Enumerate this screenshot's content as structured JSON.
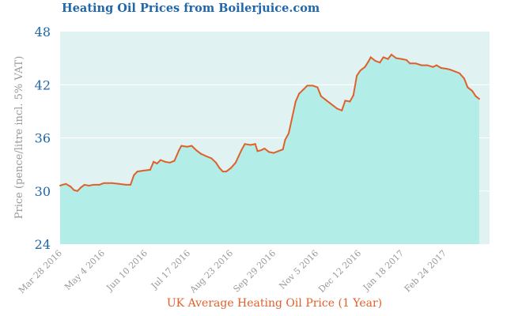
{
  "chart_data": {
    "type": "area",
    "title": "Heating Oil Prices from Boilerjuice.com",
    "ylabel": "Price (pence/litre incl. 5% VAT)",
    "xlabel": "UK Average Heating Oil Price (1 Year)",
    "ylim": [
      24,
      48
    ],
    "yticks": [
      "24",
      "30",
      "36",
      "42",
      "48"
    ],
    "xlim": [
      "2016-03-28",
      "2017-04-04"
    ],
    "xticks": [
      {
        "date": "2016-03-28",
        "label": "Mar 28 2016"
      },
      {
        "date": "2016-05-04",
        "label": "May 4 2016"
      },
      {
        "date": "2016-06-10",
        "label": "Jun 10 2016"
      },
      {
        "date": "2016-07-17",
        "label": "Jul 17 2016"
      },
      {
        "date": "2016-08-23",
        "label": "Aug 23 2016"
      },
      {
        "date": "2016-09-29",
        "label": "Sep 29 2016"
      },
      {
        "date": "2016-11-05",
        "label": "Nov 5 2016"
      },
      {
        "date": "2016-12-12",
        "label": "Dec 12 2016"
      },
      {
        "date": "2017-01-18",
        "label": "Jan 18 2017"
      },
      {
        "date": "2017-02-24",
        "label": "Feb 24 2017"
      }
    ],
    "grid": {
      "horizontal": true,
      "vertical": false
    },
    "series": [
      {
        "points": [
          [
            "2016-03-28",
            30.6
          ],
          [
            "2016-03-30",
            30.7
          ],
          [
            "2016-04-02",
            30.8
          ],
          [
            "2016-04-06",
            30.5
          ],
          [
            "2016-04-09",
            30.1
          ],
          [
            "2016-04-12",
            30.0
          ],
          [
            "2016-04-15",
            30.4
          ],
          [
            "2016-04-18",
            30.7
          ],
          [
            "2016-04-22",
            30.6
          ],
          [
            "2016-04-26",
            30.7
          ],
          [
            "2016-05-01",
            30.7
          ],
          [
            "2016-05-05",
            30.9
          ],
          [
            "2016-05-12",
            30.9
          ],
          [
            "2016-05-18",
            30.8
          ],
          [
            "2016-05-24",
            30.7
          ],
          [
            "2016-05-28",
            30.7
          ],
          [
            "2016-05-31",
            31.8
          ],
          [
            "2016-06-03",
            32.2
          ],
          [
            "2016-06-08",
            32.3
          ],
          [
            "2016-06-14",
            32.4
          ],
          [
            "2016-06-17",
            33.3
          ],
          [
            "2016-06-20",
            33.1
          ],
          [
            "2016-06-23",
            33.5
          ],
          [
            "2016-06-27",
            33.3
          ],
          [
            "2016-07-01",
            33.2
          ],
          [
            "2016-07-05",
            33.4
          ],
          [
            "2016-07-09",
            34.6
          ],
          [
            "2016-07-11",
            35.1
          ],
          [
            "2016-07-16",
            35.0
          ],
          [
            "2016-07-20",
            35.1
          ],
          [
            "2016-07-24",
            34.6
          ],
          [
            "2016-07-28",
            34.2
          ],
          [
            "2016-08-02",
            33.9
          ],
          [
            "2016-08-06",
            33.7
          ],
          [
            "2016-08-10",
            33.2
          ],
          [
            "2016-08-13",
            32.6
          ],
          [
            "2016-08-16",
            32.2
          ],
          [
            "2016-08-19",
            32.2
          ],
          [
            "2016-08-23",
            32.6
          ],
          [
            "2016-08-27",
            33.2
          ],
          [
            "2016-09-01",
            34.6
          ],
          [
            "2016-09-04",
            35.3
          ],
          [
            "2016-09-09",
            35.2
          ],
          [
            "2016-09-13",
            35.3
          ],
          [
            "2016-09-15",
            34.5
          ],
          [
            "2016-09-18",
            34.6
          ],
          [
            "2016-09-21",
            34.8
          ],
          [
            "2016-09-25",
            34.4
          ],
          [
            "2016-09-29",
            34.3
          ],
          [
            "2016-10-03",
            34.5
          ],
          [
            "2016-10-07",
            34.7
          ],
          [
            "2016-10-09",
            35.8
          ],
          [
            "2016-10-12",
            36.5
          ],
          [
            "2016-10-15",
            38.3
          ],
          [
            "2016-10-18",
            40.1
          ],
          [
            "2016-10-21",
            41.0
          ],
          [
            "2016-10-25",
            41.5
          ],
          [
            "2016-10-28",
            41.9
          ],
          [
            "2016-11-02",
            41.9
          ],
          [
            "2016-11-06",
            41.7
          ],
          [
            "2016-11-09",
            40.7
          ],
          [
            "2016-11-13",
            40.3
          ],
          [
            "2016-11-18",
            39.8
          ],
          [
            "2016-11-23",
            39.3
          ],
          [
            "2016-11-27",
            39.1
          ],
          [
            "2016-11-30",
            40.2
          ],
          [
            "2016-12-04",
            40.1
          ],
          [
            "2016-12-07",
            40.8
          ],
          [
            "2016-12-10",
            43.0
          ],
          [
            "2016-12-13",
            43.6
          ],
          [
            "2016-12-17",
            44.0
          ],
          [
            "2016-12-20",
            44.6
          ],
          [
            "2016-12-22",
            45.1
          ],
          [
            "2016-12-26",
            44.7
          ],
          [
            "2016-12-30",
            44.5
          ],
          [
            "2017-01-02",
            45.1
          ],
          [
            "2017-01-06",
            44.9
          ],
          [
            "2017-01-09",
            45.4
          ],
          [
            "2017-01-13",
            45.0
          ],
          [
            "2017-01-18",
            44.9
          ],
          [
            "2017-01-22",
            44.8
          ],
          [
            "2017-01-25",
            44.4
          ],
          [
            "2017-01-30",
            44.4
          ],
          [
            "2017-02-04",
            44.2
          ],
          [
            "2017-02-09",
            44.2
          ],
          [
            "2017-02-14",
            44.0
          ],
          [
            "2017-02-17",
            44.2
          ],
          [
            "2017-02-21",
            43.9
          ],
          [
            "2017-02-26",
            43.8
          ],
          [
            "2017-03-01",
            43.7
          ],
          [
            "2017-03-05",
            43.5
          ],
          [
            "2017-03-09",
            43.3
          ],
          [
            "2017-03-13",
            42.7
          ],
          [
            "2017-03-16",
            41.7
          ],
          [
            "2017-03-20",
            41.3
          ],
          [
            "2017-03-23",
            40.7
          ],
          [
            "2017-03-26",
            40.4
          ]
        ]
      }
    ],
    "colors": {
      "title": "#1f66aa",
      "ytick": "#1f66aa",
      "ylabel": "#999999",
      "xtick": "#999999",
      "xlabel": "#e0602c",
      "line": "#e0602c",
      "fill": "#b3ede8",
      "plot_bg": "#e0f2f1",
      "grid": "#ffffff"
    }
  }
}
